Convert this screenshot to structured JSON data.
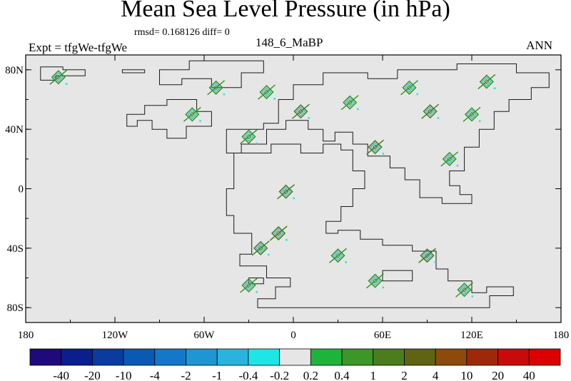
{
  "header": {
    "title": "Mean Sea Level Pressure (in hPa)",
    "stats": "rmsd= 0.168126 diff= 0",
    "experiment": "Expt = tfgWe-tfgWe",
    "case_id": "148_6_MaBP",
    "season": "ANN"
  },
  "chart_data": {
    "type": "heatmap",
    "title": "Mean Sea Level Pressure (in hPa)",
    "x_ticks": [
      {
        "v": -180,
        "label": "180"
      },
      {
        "v": -120,
        "label": "120W"
      },
      {
        "v": -60,
        "label": "60W"
      },
      {
        "v": 0,
        "label": "0"
      },
      {
        "v": 60,
        "label": "60E"
      },
      {
        "v": 120,
        "label": "120E"
      },
      {
        "v": 180,
        "label": "180"
      }
    ],
    "y_ticks": [
      {
        "v": 80,
        "label": "80N"
      },
      {
        "v": 40,
        "label": "40N"
      },
      {
        "v": 0,
        "label": "0"
      },
      {
        "v": -40,
        "label": "40S"
      },
      {
        "v": -80,
        "label": "80S"
      }
    ],
    "xlim": [
      -180,
      180
    ],
    "ylim": [
      -90,
      90
    ],
    "background_color": "#e6e6e6",
    "colorbar": {
      "labels": [
        "-40",
        "-20",
        "-10",
        "-4",
        "-2",
        "-1",
        "-0.4",
        "-0.2",
        "0.2",
        "0.4",
        "1",
        "2",
        "4",
        "10",
        "20",
        "40"
      ],
      "colors": [
        "#1e0a78",
        "#0a1e8c",
        "#0a3ca0",
        "#0a5ab4",
        "#1478c8",
        "#1e96d2",
        "#28b4dc",
        "#1ee6e6",
        "#e6e6e6",
        "#1eb43c",
        "#3c9628",
        "#4b7d1e",
        "#5f6414",
        "#8c4b0a",
        "#a0280a",
        "#c80a0a",
        "#dc0000"
      ]
    },
    "anomaly_clusters": [
      {
        "lon": -158,
        "lat": 75,
        "level": "0.4"
      },
      {
        "lon": -68,
        "lat": 50,
        "level": "0.4"
      },
      {
        "lon": -52,
        "lat": 68,
        "level": "0.4"
      },
      {
        "lon": -18,
        "lat": 65,
        "level": "0.4"
      },
      {
        "lon": -30,
        "lat": 35,
        "level": "0.4"
      },
      {
        "lon": 5,
        "lat": 52,
        "level": "1"
      },
      {
        "lon": 38,
        "lat": 58,
        "level": "0.4"
      },
      {
        "lon": 55,
        "lat": 28,
        "level": "1"
      },
      {
        "lon": 78,
        "lat": 68,
        "level": "0.4"
      },
      {
        "lon": 92,
        "lat": 52,
        "level": "1"
      },
      {
        "lon": 105,
        "lat": 20,
        "level": "0.4"
      },
      {
        "lon": 130,
        "lat": 72,
        "level": "0.4"
      },
      {
        "lon": 120,
        "lat": 50,
        "level": "0.4"
      },
      {
        "lon": -5,
        "lat": -2,
        "level": "1"
      },
      {
        "lon": -10,
        "lat": -30,
        "level": "1"
      },
      {
        "lon": -22,
        "lat": -40,
        "level": "1"
      },
      {
        "lon": 30,
        "lat": -45,
        "level": "0.4"
      },
      {
        "lon": 55,
        "lat": -62,
        "level": "0.4"
      },
      {
        "lon": 90,
        "lat": -45,
        "level": "1"
      },
      {
        "lon": 115,
        "lat": -68,
        "level": "0.4"
      },
      {
        "lon": -30,
        "lat": -65,
        "level": "0.4"
      }
    ]
  }
}
